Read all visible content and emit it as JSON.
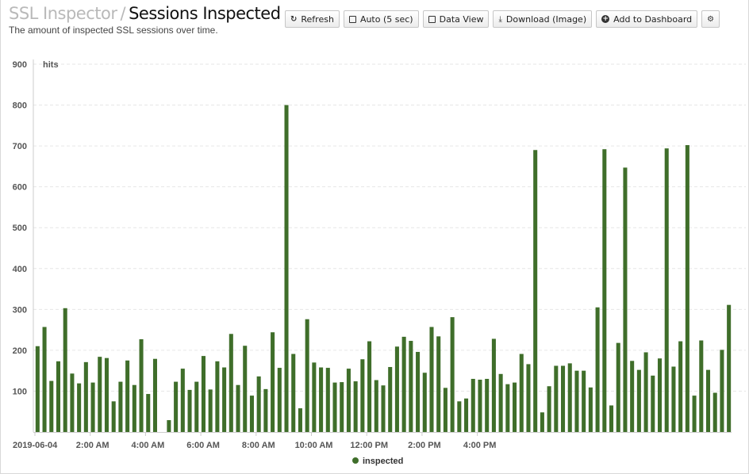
{
  "header": {
    "breadcrumb": "SSL Inspector",
    "separator": "/",
    "title": "Sessions Inspected",
    "subtitle": "The amount of inspected SSL sessions over time."
  },
  "toolbar": {
    "refresh_label": "Refresh",
    "refresh_icon": "refresh-icon",
    "auto_label": "Auto (5 sec)",
    "data_view_label": "Data View",
    "download_label": "Download (Image)",
    "download_icon": "download-icon",
    "add_label": "Add to Dashboard",
    "add_icon": "plus-circle-icon",
    "settings_icon": "gear-icon"
  },
  "colors": {
    "bar": "#3f6e2a",
    "grid": "#e6e6e6",
    "axis": "#cccccc"
  },
  "chart_data": {
    "type": "bar",
    "ylabel": "hits",
    "ylim": [
      0,
      900
    ],
    "yticks": [
      100,
      200,
      300,
      400,
      500,
      600,
      700,
      800,
      900
    ],
    "xticks": [
      "2019-06-04",
      "2:00 AM",
      "4:00 AM",
      "6:00 AM",
      "8:00 AM",
      "10:00 AM",
      "12:00 PM",
      "2:00 PM",
      "4:00 PM"
    ],
    "grid": "horizontal dashed",
    "legend": {
      "position": "bottom",
      "entries": [
        "inspected"
      ]
    },
    "series": [
      {
        "name": "inspected",
        "values": [
          210,
          257,
          125,
          173,
          303,
          143,
          119,
          171,
          121,
          184,
          181,
          75,
          123,
          175,
          115,
          227,
          93,
          179,
          0,
          29,
          123,
          155,
          103,
          123,
          186,
          104,
          173,
          158,
          240,
          115,
          211,
          89,
          136,
          105,
          244,
          157,
          800,
          191,
          58,
          276,
          170,
          158,
          157,
          121,
          122,
          155,
          124,
          178,
          222,
          127,
          114,
          159,
          209,
          233,
          223,
          196,
          145,
          257,
          234,
          108,
          281,
          75,
          82,
          130,
          128,
          130,
          228,
          142,
          117,
          121,
          191,
          166,
          690,
          48,
          112,
          162,
          162,
          168,
          150,
          150,
          109,
          305,
          692,
          65,
          218,
          647,
          174,
          152,
          195,
          138,
          180,
          694,
          160,
          222,
          702,
          89,
          224,
          152,
          96,
          201,
          311
        ]
      }
    ]
  }
}
